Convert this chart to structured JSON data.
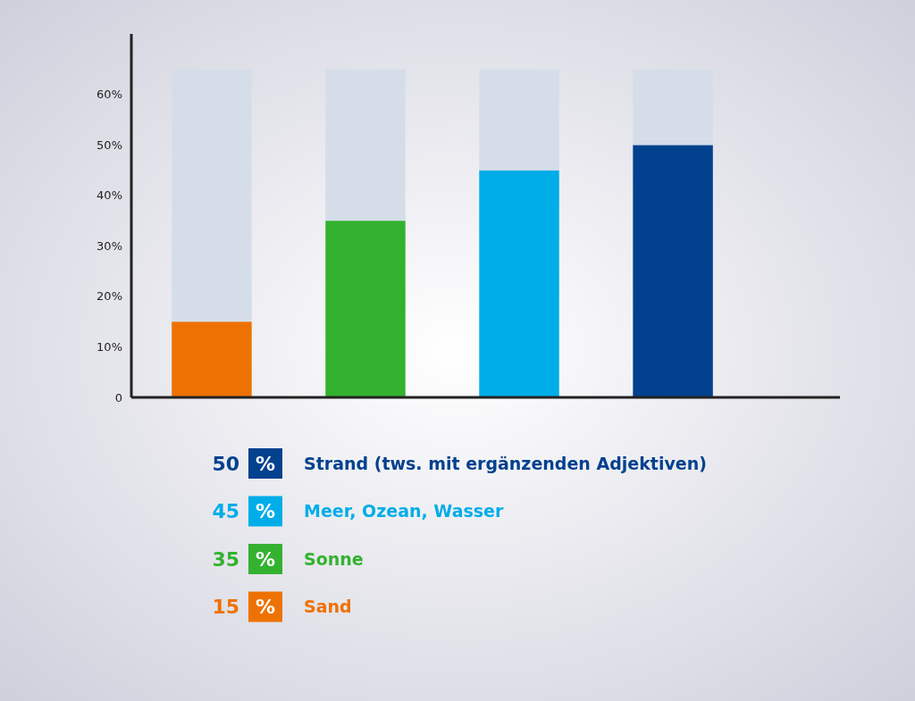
{
  "chart_data": {
    "type": "bar",
    "categories": [
      null,
      null,
      null,
      null
    ],
    "series": [
      {
        "name": "Strand (tws. mit ergänzenden Adjektiven)",
        "color": "#02418e",
        "values": [
          null,
          null,
          null,
          50
        ]
      },
      {
        "name": "Meer, Ozean, Wasser",
        "color": "#00ade8",
        "values": [
          null,
          null,
          45,
          null
        ]
      },
      {
        "name": "Sonne",
        "color": "#33b22f",
        "values": [
          null,
          35,
          null,
          null
        ]
      },
      {
        "name": "Sand",
        "color": "#ee7203",
        "values": [
          15,
          null,
          null,
          null
        ]
      },
      {
        "values": [
          50,
          30,
          20,
          15
        ],
        "color": "#d5dee8"
      }
    ],
    "annotations": [
      "50 %",
      "45 %",
      "35 %",
      "15 %"
    ],
    "stacked": true,
    "ylim": [
      0,
      72
    ],
    "yticks": [
      {
        "value": 0,
        "label": "0"
      },
      {
        "value": 10,
        "label": "10%"
      },
      {
        "value": 20,
        "label": "20%"
      },
      {
        "value": 30,
        "label": "30%"
      },
      {
        "value": 40,
        "label": "40%"
      },
      {
        "value": 50,
        "label": "50%"
      },
      {
        "value": 60,
        "label": "60%"
      }
    ],
    "legend": "bottom"
  }
}
